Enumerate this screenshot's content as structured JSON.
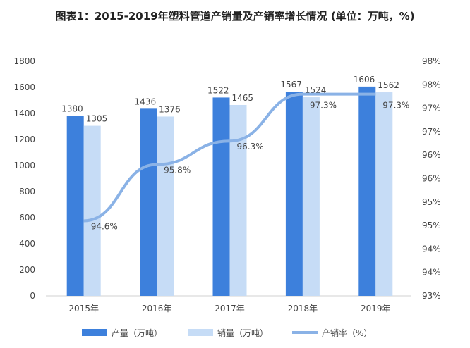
{
  "chart_data": {
    "type": "bar+line",
    "title": "图表1：2015-2019年塑料管道产销量及产销率增长情况 (单位：万吨，%)",
    "categories": [
      "2015年",
      "2016年",
      "2017年",
      "2018年",
      "2019年"
    ],
    "series": [
      {
        "name": "产量（万吨）",
        "type": "bar",
        "axis": "left",
        "color": "#3d80dc",
        "values": [
          1380,
          1436,
          1522,
          1567,
          1606
        ]
      },
      {
        "name": "销量（万吨）",
        "type": "bar",
        "axis": "left",
        "color": "#c6dcf6",
        "values": [
          1305,
          1376,
          1465,
          1524,
          1562
        ]
      },
      {
        "name": "产销率（%）",
        "type": "line",
        "axis": "right",
        "color": "#8ab2e6",
        "values": [
          94.6,
          95.8,
          96.3,
          97.3,
          97.3
        ],
        "labels": [
          "94.6%",
          "95.8%",
          "96.3%",
          "97.3%",
          "97.3%"
        ]
      }
    ],
    "left_axis": {
      "min": 0,
      "max": 1800,
      "step": 200
    },
    "right_axis": {
      "min": 93,
      "max": 98,
      "step": 0.5,
      "tick_labels": [
        "93%",
        "94%",
        "94%",
        "95%",
        "95%",
        "96%",
        "96%",
        "97%",
        "97%",
        "98%",
        "98%"
      ]
    },
    "grid": false,
    "legend": "bottom"
  }
}
